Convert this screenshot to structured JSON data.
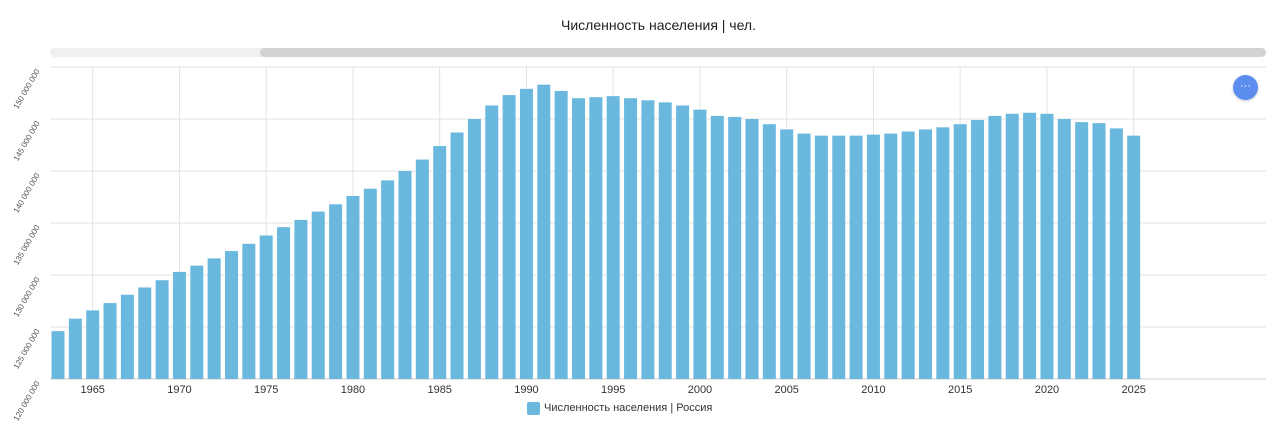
{
  "title": "Численность населения | чел.",
  "menu_button_label": "···",
  "chart_data": {
    "type": "bar",
    "title": "Численность населения | чел.",
    "series_name": "Численность населения | Россия",
    "color": "#6bb8de",
    "grid": true,
    "legend_position": "bottom-center",
    "ylim": [
      120000000,
      150000000
    ],
    "yticks": [
      120000000,
      125000000,
      130000000,
      135000000,
      140000000,
      145000000,
      150000000
    ],
    "ytick_labels": [
      "120 000 000",
      "125 000 000",
      "130 000 000",
      "135 000 000",
      "140 000 000",
      "145 000 000",
      "150 000 000"
    ],
    "xticks": [
      1965,
      1970,
      1975,
      1980,
      1985,
      1990,
      1995,
      2000,
      2005,
      2010,
      2015,
      2020,
      2025
    ],
    "x": [
      1963,
      1964,
      1965,
      1966,
      1967,
      1968,
      1969,
      1970,
      1971,
      1972,
      1973,
      1974,
      1975,
      1976,
      1977,
      1978,
      1979,
      1980,
      1981,
      1982,
      1983,
      1984,
      1985,
      1986,
      1987,
      1988,
      1989,
      1990,
      1991,
      1992,
      1993,
      1994,
      1995,
      1996,
      1997,
      1998,
      1999,
      2000,
      2001,
      2002,
      2003,
      2004,
      2005,
      2006,
      2007,
      2008,
      2009,
      2010,
      2011,
      2012,
      2013,
      2014,
      2015,
      2016,
      2017,
      2018,
      2019,
      2020,
      2021,
      2022,
      2023,
      2024,
      2025
    ],
    "values": [
      124600000,
      125800000,
      126600000,
      127300000,
      128100000,
      128800000,
      129500000,
      130300000,
      130900000,
      131600000,
      132300000,
      133000000,
      133800000,
      134600000,
      135300000,
      136100000,
      136800000,
      137600000,
      138300000,
      139100000,
      140000000,
      141100000,
      142400000,
      143700000,
      145000000,
      146300000,
      147300000,
      147900000,
      148300000,
      147700000,
      147000000,
      147100000,
      147200000,
      147000000,
      146800000,
      146600000,
      146300000,
      145900000,
      145300000,
      145200000,
      145000000,
      144500000,
      144000000,
      143600000,
      143400000,
      143400000,
      143400000,
      143500000,
      143600000,
      143800000,
      144000000,
      144200000,
      144500000,
      144900000,
      145300000,
      145500000,
      145600000,
      145500000,
      145000000,
      144700000,
      144600000,
      144100000,
      143400000
    ]
  }
}
